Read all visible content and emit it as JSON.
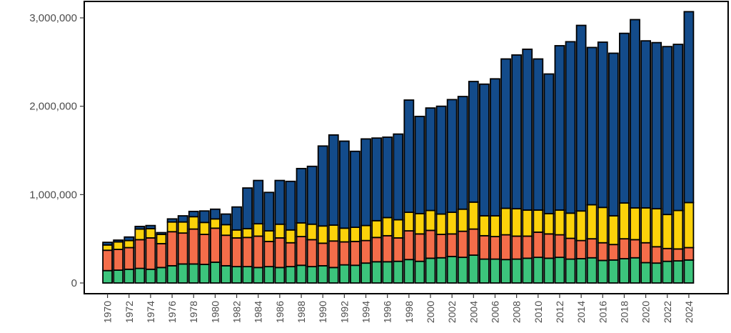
{
  "chart_data": {
    "type": "bar",
    "stacked": true,
    "title": "",
    "xlabel": "",
    "ylabel": "",
    "ylim": [
      0,
      3000000
    ],
    "y_ticks": [
      0,
      1000000,
      2000000,
      3000000
    ],
    "y_tick_labels": [
      "0",
      "1,000,000",
      "2,000,000",
      "3,000,000"
    ],
    "x_tick_labels": [
      "1970",
      "1972",
      "1974",
      "1976",
      "1978",
      "1980",
      "1982",
      "1984",
      "1986",
      "1988",
      "1990",
      "1992",
      "1994",
      "1996",
      "1998",
      "2000",
      "2002",
      "2004",
      "2006",
      "2008",
      "2010",
      "2012",
      "2014",
      "2016",
      "2018",
      "2020",
      "2022",
      "2024"
    ],
    "grid": false,
    "legend": "none",
    "categories": [
      "1970",
      "1971",
      "1972",
      "1973",
      "1974",
      "1975",
      "1976",
      "1977",
      "1978",
      "1979",
      "1980",
      "1981",
      "1982",
      "1983",
      "1984",
      "1985",
      "1986",
      "1987",
      "1988",
      "1989",
      "1990",
      "1991",
      "1992",
      "1993",
      "1994",
      "1995",
      "1996",
      "1997",
      "1998",
      "1999",
      "2000",
      "2001",
      "2002",
      "2003",
      "2004",
      "2005",
      "2006",
      "2007",
      "2008",
      "2009",
      "2010",
      "2011",
      "2012",
      "2013",
      "2014",
      "2015",
      "2016",
      "2017",
      "2018",
      "2019",
      "2020",
      "2021",
      "2022",
      "2023",
      "2024"
    ],
    "series": [
      {
        "color": "#3cc47c",
        "values": [
          140000,
          145000,
          155000,
          165000,
          155000,
          175000,
          195000,
          215000,
          215000,
          210000,
          235000,
          195000,
          185000,
          185000,
          175000,
          185000,
          175000,
          185000,
          200000,
          185000,
          195000,
          175000,
          205000,
          200000,
          225000,
          240000,
          240000,
          245000,
          265000,
          245000,
          280000,
          285000,
          300000,
          290000,
          315000,
          270000,
          270000,
          265000,
          270000,
          280000,
          290000,
          280000,
          290000,
          270000,
          275000,
          285000,
          255000,
          260000,
          275000,
          285000,
          230000,
          225000,
          245000,
          250000,
          260000
        ]
      },
      {
        "color": "#f46d4a",
        "values": [
          230000,
          235000,
          245000,
          325000,
          355000,
          270000,
          385000,
          350000,
          395000,
          340000,
          385000,
          345000,
          325000,
          330000,
          355000,
          285000,
          335000,
          270000,
          325000,
          305000,
          255000,
          300000,
          260000,
          270000,
          255000,
          275000,
          295000,
          265000,
          325000,
          310000,
          315000,
          265000,
          255000,
          295000,
          295000,
          265000,
          255000,
          280000,
          260000,
          250000,
          285000,
          275000,
          255000,
          235000,
          205000,
          215000,
          200000,
          175000,
          225000,
          205000,
          225000,
          185000,
          145000,
          135000,
          140000
        ]
      },
      {
        "color": "#fcd20a",
        "values": [
          60000,
          85000,
          80000,
          120000,
          105000,
          105000,
          110000,
          125000,
          140000,
          135000,
          105000,
          120000,
          90000,
          100000,
          140000,
          120000,
          155000,
          145000,
          155000,
          175000,
          195000,
          180000,
          155000,
          160000,
          170000,
          190000,
          205000,
          205000,
          210000,
          230000,
          225000,
          230000,
          245000,
          250000,
          305000,
          225000,
          235000,
          300000,
          310000,
          295000,
          250000,
          230000,
          280000,
          285000,
          335000,
          385000,
          400000,
          325000,
          405000,
          360000,
          395000,
          430000,
          385000,
          435000,
          510000
        ]
      },
      {
        "color": "#134b8a",
        "values": [
          30000,
          20000,
          40000,
          30000,
          35000,
          20000,
          35000,
          70000,
          60000,
          130000,
          110000,
          120000,
          260000,
          460000,
          490000,
          435000,
          495000,
          550000,
          615000,
          655000,
          905000,
          1020000,
          985000,
          860000,
          980000,
          935000,
          910000,
          970000,
          1270000,
          1100000,
          1160000,
          1220000,
          1275000,
          1275000,
          1365000,
          1490000,
          1550000,
          1690000,
          1740000,
          1820000,
          1710000,
          1580000,
          1860000,
          1940000,
          2100000,
          1780000,
          1870000,
          1840000,
          1920000,
          2130000,
          1890000,
          1880000,
          1900000,
          1880000,
          2160000
        ]
      }
    ]
  }
}
